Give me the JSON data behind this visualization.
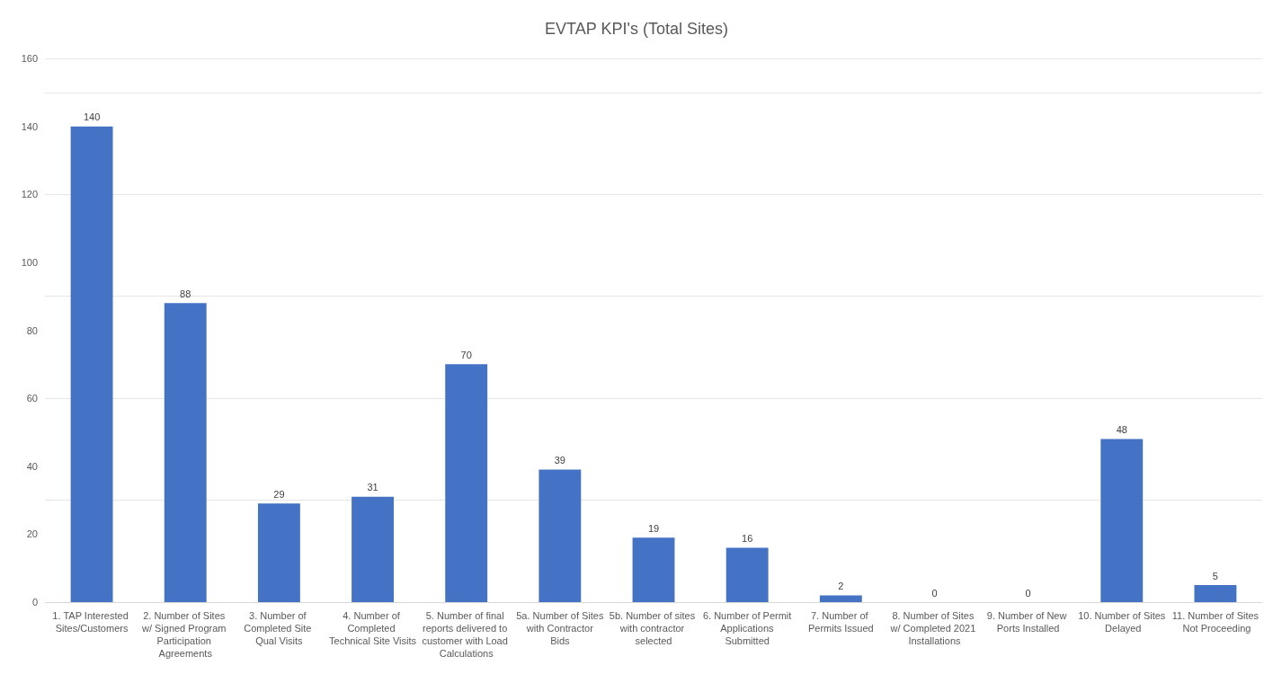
{
  "chart_data": {
    "type": "bar",
    "title": "EVTAP KPI's (Total Sites)",
    "categories": [
      "1. TAP Interested Sites/Customers",
      "2. Number of Sites w/ Signed Program Participation Agreements",
      "3. Number of Completed Site Qual Visits",
      "4. Number of Completed Technical Site Visits",
      "5. Number of final reports delivered to customer with Load Calculations",
      "5a. Number of Sites with Contractor Bids",
      "5b. Number of sites with contractor selected",
      "6. Number of Permit Applications Submitted",
      "7. Number of Permits Issued",
      "8. Number of Sites w/ Completed 2021 Installations",
      "9. Number of New Ports Installed",
      "10. Number of Sites Delayed",
      "11. Number of Sites Not Proceeding"
    ],
    "values": [
      140,
      88,
      29,
      31,
      70,
      39,
      19,
      16,
      2,
      0,
      0,
      48,
      5
    ],
    "color": "#4472c4",
    "ylim": [
      0,
      160
    ],
    "yticks": [
      0,
      20,
      40,
      60,
      80,
      100,
      120,
      140,
      160
    ],
    "grid": "y",
    "data_labels": true
  }
}
